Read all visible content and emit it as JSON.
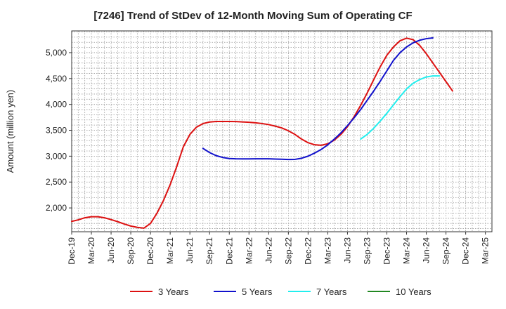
{
  "chart_data": {
    "type": "line",
    "title": "[7246]  Trend of StDev of 12-Month Moving Sum of Operating CF",
    "ylabel": "Amount (million yen)",
    "xlabel": "",
    "ylim": [
      1540,
      5420
    ],
    "yticks": [
      2000,
      2500,
      3000,
      3500,
      4000,
      4500,
      5000
    ],
    "ytick_labels": [
      "2,000",
      "2,500",
      "3,000",
      "3,500",
      "4,000",
      "4,500",
      "5,000"
    ],
    "x_tick_labels": [
      "Dec-19",
      "Mar-20",
      "Jun-20",
      "Sep-20",
      "Dec-20",
      "Mar-21",
      "Jun-21",
      "Sep-21",
      "Dec-21",
      "Mar-22",
      "Jun-22",
      "Sep-22",
      "Dec-22",
      "Mar-23",
      "Jun-23",
      "Sep-23",
      "Dec-23",
      "Mar-24",
      "Jun-24",
      "Sep-24",
      "Dec-24",
      "Mar-25"
    ],
    "x_month_count": 64,
    "grid": true,
    "legend_position": "bottom",
    "series": [
      {
        "name": "3 Years",
        "color": "#dd1111",
        "points": [
          [
            0,
            1740
          ],
          [
            1,
            1770
          ],
          [
            2,
            1810
          ],
          [
            3,
            1830
          ],
          [
            4,
            1830
          ],
          [
            5,
            1810
          ],
          [
            6,
            1775
          ],
          [
            7,
            1735
          ],
          [
            8,
            1690
          ],
          [
            9,
            1650
          ],
          [
            10,
            1625
          ],
          [
            11,
            1610
          ],
          [
            12,
            1700
          ],
          [
            13,
            1900
          ],
          [
            14,
            2150
          ],
          [
            15,
            2450
          ],
          [
            16,
            2800
          ],
          [
            17,
            3180
          ],
          [
            18,
            3420
          ],
          [
            19,
            3560
          ],
          [
            20,
            3630
          ],
          [
            21,
            3660
          ],
          [
            22,
            3670
          ],
          [
            23,
            3670
          ],
          [
            24,
            3670
          ],
          [
            25,
            3668
          ],
          [
            26,
            3662
          ],
          [
            27,
            3655
          ],
          [
            28,
            3645
          ],
          [
            29,
            3630
          ],
          [
            30,
            3610
          ],
          [
            31,
            3580
          ],
          [
            32,
            3545
          ],
          [
            33,
            3490
          ],
          [
            34,
            3420
          ],
          [
            35,
            3330
          ],
          [
            36,
            3260
          ],
          [
            37,
            3220
          ],
          [
            38,
            3210
          ],
          [
            39,
            3240
          ],
          [
            40,
            3310
          ],
          [
            41,
            3420
          ],
          [
            42,
            3570
          ],
          [
            43,
            3760
          ],
          [
            44,
            3980
          ],
          [
            45,
            4220
          ],
          [
            46,
            4480
          ],
          [
            47,
            4730
          ],
          [
            48,
            4950
          ],
          [
            49,
            5110
          ],
          [
            50,
            5230
          ],
          [
            51,
            5280
          ],
          [
            52,
            5250
          ],
          [
            53,
            5140
          ],
          [
            54,
            4980
          ],
          [
            55,
            4800
          ],
          [
            56,
            4620
          ],
          [
            57,
            4440
          ],
          [
            58,
            4260
          ]
        ]
      },
      {
        "name": "5 Years",
        "color": "#1111cc",
        "points": [
          [
            20,
            3150
          ],
          [
            21,
            3070
          ],
          [
            22,
            3010
          ],
          [
            23,
            2975
          ],
          [
            24,
            2955
          ],
          [
            25,
            2950
          ],
          [
            26,
            2948
          ],
          [
            27,
            2948
          ],
          [
            28,
            2950
          ],
          [
            29,
            2950
          ],
          [
            30,
            2950
          ],
          [
            31,
            2945
          ],
          [
            32,
            2940
          ],
          [
            33,
            2935
          ],
          [
            34,
            2938
          ],
          [
            35,
            2960
          ],
          [
            36,
            3000
          ],
          [
            37,
            3060
          ],
          [
            38,
            3130
          ],
          [
            39,
            3220
          ],
          [
            40,
            3330
          ],
          [
            41,
            3450
          ],
          [
            42,
            3590
          ],
          [
            43,
            3740
          ],
          [
            44,
            3900
          ],
          [
            45,
            4080
          ],
          [
            46,
            4260
          ],
          [
            47,
            4450
          ],
          [
            48,
            4650
          ],
          [
            49,
            4850
          ],
          [
            50,
            5000
          ],
          [
            51,
            5110
          ],
          [
            52,
            5190
          ],
          [
            53,
            5240
          ],
          [
            54,
            5270
          ],
          [
            55,
            5285
          ]
        ]
      },
      {
        "name": "7 Years",
        "color": "#22eeee",
        "points": [
          [
            44,
            3330
          ],
          [
            45,
            3420
          ],
          [
            46,
            3540
          ],
          [
            47,
            3680
          ],
          [
            48,
            3830
          ],
          [
            49,
            3990
          ],
          [
            50,
            4150
          ],
          [
            51,
            4300
          ],
          [
            52,
            4410
          ],
          [
            53,
            4480
          ],
          [
            54,
            4530
          ],
          [
            55,
            4550
          ],
          [
            56,
            4550
          ]
        ]
      },
      {
        "name": "10 Years",
        "color": "#228822",
        "points": []
      }
    ]
  }
}
